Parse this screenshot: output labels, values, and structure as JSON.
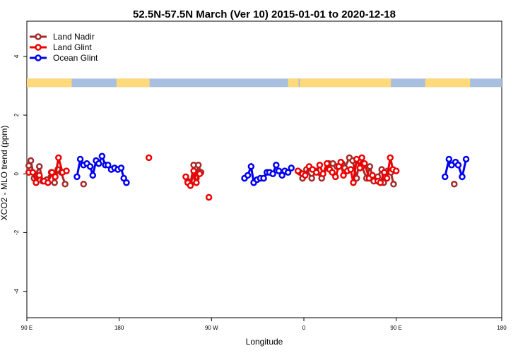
{
  "chart_data": {
    "type": "line",
    "title": "52.5N-57.5N March (Ver 10)   2015-01-01 to 2020-12-18",
    "xlabel": "Longitude",
    "ylabel": "XCO2 - MLO trend (ppm)",
    "xlim": [
      -90,
      270
    ],
    "ylim": [
      -4.9,
      5.2
    ],
    "x_tick_positions": [
      -90,
      -20,
      50,
      120,
      190,
      270
    ],
    "x_tick_labels": [
      "90 E",
      "180",
      "90 W",
      "0",
      "90 E",
      "180"
    ],
    "y_ticks": [
      -4,
      -2,
      0,
      2,
      4
    ],
    "grid": false,
    "legend_position": "top-left",
    "land_ocean_band": {
      "y": 3.1,
      "land_color": "#ffd97a",
      "ocean_color": "#a9bfe0"
    },
    "series": [
      {
        "name": "Land Nadir",
        "color": "#a52a2a",
        "segments": [
          [
            [
              -88.5,
              0.28
            ],
            [
              -87.0,
              0.45
            ],
            [
              -84.5,
              -0.15
            ],
            [
              -80.5,
              0.25
            ],
            [
              -78.0,
              -0.25
            ],
            [
              -75.0,
              -0.2
            ],
            [
              -71.5,
              0.05
            ],
            [
              -69.0,
              -0.3
            ],
            [
              -66.5,
              0.15
            ],
            [
              -64.0,
              0.05
            ],
            [
              -61.0,
              -0.35
            ]
          ],
          [
            [
              -47.0,
              -0.35
            ]
          ],
          [
            [
              32.0,
              -0.25
            ],
            [
              34.0,
              -0.35
            ],
            [
              36.5,
              0.3
            ],
            [
              38.5,
              -0.15
            ],
            [
              40.0,
              0.3
            ],
            [
              42.0,
              0.05
            ]
          ],
          [
            [
              117.0,
              0.05
            ],
            [
              119.0,
              -0.15
            ],
            [
              122.0,
              0.15
            ],
            [
              126.0,
              -0.15
            ],
            [
              129.0,
              0.1
            ],
            [
              133.5,
              -0.15
            ],
            [
              139.0,
              0.35
            ],
            [
              142.0,
              0.35
            ],
            [
              145.0,
              0.25
            ],
            [
              149.0,
              0.35
            ],
            [
              151.0,
              0.2
            ],
            [
              154.5,
              0.55
            ],
            [
              157.0,
              0.45
            ],
            [
              160.0,
              -0.15
            ],
            [
              162.0,
              0.45
            ],
            [
              164.0,
              0.25
            ],
            [
              167.5,
              -0.15
            ],
            [
              170.0,
              0.25
            ],
            [
              173.0,
              -0.25
            ],
            [
              176.0,
              -0.1
            ],
            [
              179.0,
              0.15
            ],
            [
              180.5,
              -0.3
            ],
            [
              183.5,
              0.1
            ],
            [
              186.0,
              0.05
            ],
            [
              188.0,
              -0.35
            ]
          ],
          [
            [
              234.0,
              -0.35
            ]
          ]
        ]
      },
      {
        "name": "Land Glint",
        "color": "#ee0000",
        "segments": [
          [
            [
              -88.5,
              0.05
            ],
            [
              -85.5,
              0.05
            ],
            [
              -83.0,
              -0.3
            ],
            [
              -80.5,
              -0.05
            ],
            [
              -77.0,
              -0.25
            ],
            [
              -74.0,
              -0.3
            ],
            [
              -71.0,
              0.05
            ],
            [
              -68.5,
              -0.1
            ],
            [
              -66.0,
              0.55
            ],
            [
              -63.0,
              0.05
            ],
            [
              -60.0,
              0.1
            ]
          ],
          [
            [
              2.5,
              0.55
            ]
          ],
          [
            [
              30.5,
              -0.1
            ],
            [
              32.0,
              -0.3
            ],
            [
              34.0,
              -0.4
            ],
            [
              36.5,
              0.1
            ],
            [
              38.5,
              -0.3
            ],
            [
              41.0,
              0.0
            ]
          ],
          [
            [
              48.0,
              -0.8
            ]
          ],
          [
            [
              115.5,
              0.1
            ],
            [
              119.0,
              0.0
            ],
            [
              121.0,
              -0.05
            ],
            [
              124.0,
              0.25
            ],
            [
              126.5,
              0.15
            ],
            [
              129.5,
              0.05
            ],
            [
              132.0,
              0.3
            ],
            [
              134.5,
              0.0
            ],
            [
              137.5,
              0.35
            ],
            [
              139.5,
              0.15
            ],
            [
              141.5,
              0.05
            ],
            [
              144.0,
              -0.1
            ],
            [
              146.5,
              0.25
            ],
            [
              148.0,
              0.4
            ],
            [
              150.0,
              -0.05
            ],
            [
              153.0,
              0.1
            ],
            [
              155.5,
              0.15
            ],
            [
              157.5,
              -0.3
            ],
            [
              160.0,
              0.5
            ],
            [
              162.5,
              0.2
            ],
            [
              164.0,
              0.55
            ],
            [
              166.0,
              0.35
            ],
            [
              169.5,
              -0.15
            ],
            [
              172.0,
              -0.05
            ],
            [
              176.0,
              -0.25
            ],
            [
              178.0,
              -0.3
            ],
            [
              181.0,
              0.05
            ],
            [
              183.0,
              -0.15
            ],
            [
              185.5,
              0.55
            ],
            [
              187.5,
              0.15
            ],
            [
              190.0,
              0.1
            ]
          ]
        ]
      },
      {
        "name": "Ocean Glint",
        "color": "#0000ee",
        "segments": [
          [
            [
              -52.0,
              -0.1
            ],
            [
              -49.5,
              0.5
            ],
            [
              -47.0,
              0.3
            ],
            [
              -44.5,
              0.35
            ],
            [
              -42.0,
              0.25
            ],
            [
              -40.0,
              -0.05
            ],
            [
              -37.5,
              0.45
            ],
            [
              -35.5,
              0.35
            ],
            [
              -33.0,
              0.6
            ],
            [
              -30.5,
              0.3
            ],
            [
              -28.5,
              0.3
            ],
            [
              -26.0,
              0.15
            ],
            [
              -23.5,
              0.2
            ],
            [
              -21.0,
              0.15
            ],
            [
              -18.5,
              0.2
            ],
            [
              -16.5,
              -0.15
            ],
            [
              -14.5,
              -0.3
            ]
          ],
          [
            [
              75.0,
              -0.15
            ],
            [
              77.5,
              -0.05
            ],
            [
              80.0,
              0.25
            ],
            [
              82.0,
              -0.3
            ],
            [
              84.5,
              -0.2
            ],
            [
              87.0,
              -0.15
            ],
            [
              89.5,
              -0.15
            ],
            [
              92.0,
              0.05
            ],
            [
              94.0,
              0.05
            ],
            [
              96.5,
              0.0
            ],
            [
              99.0,
              0.3
            ],
            [
              101.0,
              0.1
            ],
            [
              103.5,
              -0.05
            ],
            [
              105.5,
              0.1
            ],
            [
              108.0,
              0.05
            ],
            [
              110.5,
              0.2
            ]
          ],
          [
            [
              227.0,
              -0.1
            ],
            [
              230.0,
              0.5
            ],
            [
              232.0,
              0.3
            ],
            [
              235.0,
              0.4
            ],
            [
              237.0,
              0.3
            ],
            [
              240.0,
              -0.1
            ],
            [
              243.0,
              0.5
            ]
          ]
        ]
      }
    ]
  }
}
